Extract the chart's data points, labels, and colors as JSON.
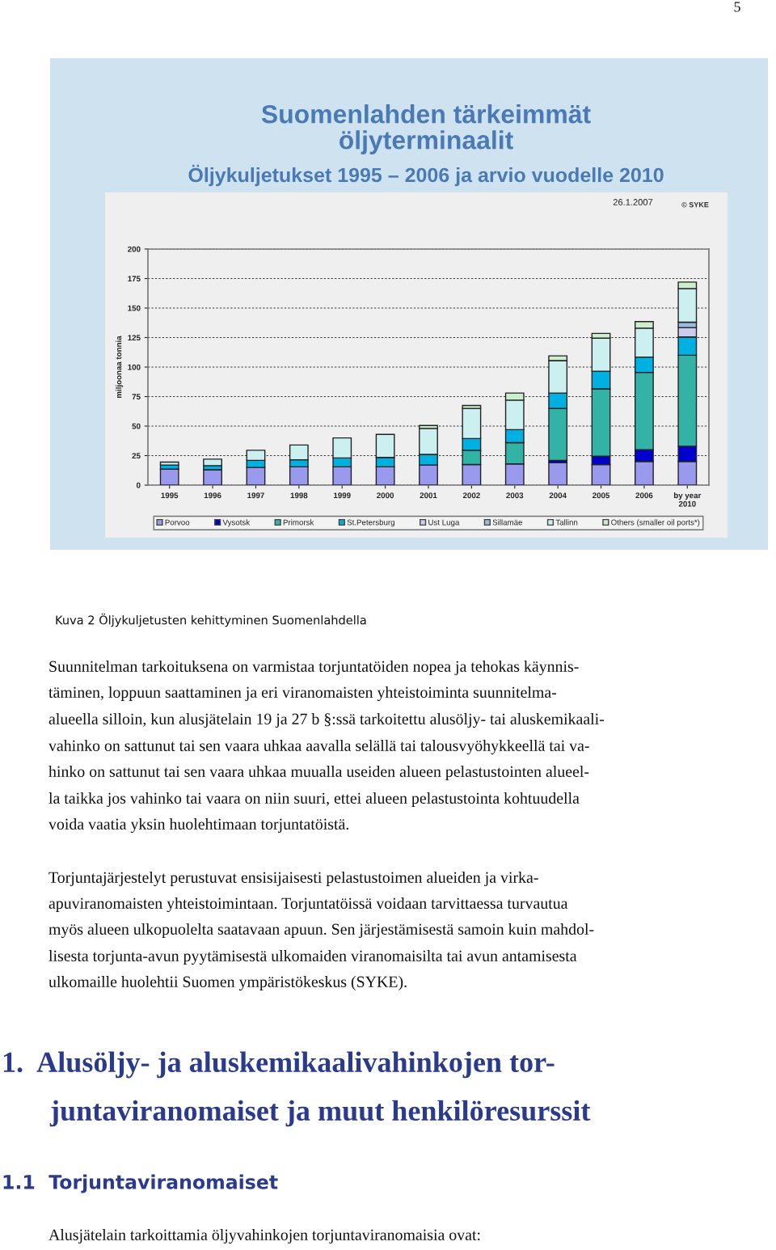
{
  "chart_data": {
    "type": "bar",
    "stacked": true,
    "title": "Suomenlahden tärkeimmät\nöljyterminaalit",
    "subtitle": "Öljykuljetukset 1995 – 2006 ja arvio vuodelle 2010",
    "ylabel": "miljoonaa tonnia",
    "categories": [
      "1995",
      "1996",
      "1997",
      "1998",
      "1999",
      "2000",
      "2001",
      "2002",
      "2003",
      "2004",
      "2005",
      "2006",
      "by year\n2010"
    ],
    "series": [
      {
        "name": "Porvoo",
        "color": "#9999ee",
        "values": [
          13.5,
          13,
          15,
          15.5,
          15.5,
          15.5,
          17,
          17.5,
          18,
          19,
          17.5,
          20,
          20
        ]
      },
      {
        "name": "Vysotsk",
        "color": "#0000cc",
        "values": [
          null,
          null,
          null,
          null,
          null,
          null,
          null,
          null,
          null,
          2,
          7,
          10,
          13
        ]
      },
      {
        "name": "Primorsk",
        "color": "#33b3a6",
        "values": [
          null,
          null,
          null,
          null,
          null,
          null,
          null,
          12,
          18,
          44,
          57,
          65.5,
          77
        ]
      },
      {
        "name": "St.Petersburg",
        "color": "#00b0e0",
        "values": [
          3.5,
          3.5,
          6,
          6,
          7.5,
          8,
          9,
          10,
          11,
          13,
          15,
          13,
          15.5
        ]
      },
      {
        "name": "Ust Luga",
        "color": "#ccccee",
        "values": [
          null,
          null,
          null,
          null,
          null,
          null,
          null,
          null,
          null,
          null,
          null,
          null,
          8
        ]
      },
      {
        "name": "Sillamäe",
        "color": "#99bbdd",
        "values": [
          null,
          null,
          null,
          null,
          null,
          null,
          null,
          null,
          null,
          null,
          null,
          null,
          4.5
        ]
      },
      {
        "name": "Tallinn",
        "color": "#ccf0f0",
        "values": [
          2.5,
          5.5,
          8.5,
          12.5,
          17,
          19.5,
          22,
          25.5,
          25,
          27.5,
          28,
          24.5,
          28.5
        ]
      },
      {
        "name": "Others (smaller oil ports*)",
        "color": "#cceecc",
        "values": [
          null,
          null,
          null,
          null,
          null,
          null,
          2.5,
          2.5,
          6,
          4,
          4,
          5.5,
          5.5
        ]
      }
    ],
    "ylim": [
      0,
      200
    ],
    "yticks": [
      0,
      25,
      50,
      75,
      100,
      125,
      150,
      175,
      200
    ],
    "grid": "y",
    "legend": "bottom",
    "annotations": [
      "26.1.2007",
      "© SYKE",
      "Kuva 2 Öljykuljetusten kehittyminen Suomenlahdella",
      "Suunnitelman tarkoituksena on varmistaa torjuntatöiden nopea ja tehokas käynnis-",
      "täminen, loppuun saattaminen ja eri viranomaisten yhteistoiminta suunnitelma-",
      "alueella silloin, kun alusjätelain 19 ja 27 b §:ssä tarkoitettu alusöljy- tai aluskemikaali-",
      "vahinko on sattunut tai sen vaara uhkaa aavalla selällä tai talousvyöhykkeellä tai va-",
      "hinko on sattunut tai sen vaara uhkaa muualla useiden alueen pelastustointen alueel-",
      "la taikka jos vahinko tai vaara on niin suuri, ettei alueen pelastustointa kohtuudella",
      "voida vaatia yksin huolehtimaan torjuntatöistä.",
      "Torjuntajärjestelyt perustuvat ensisijaisesti pelastustoimen alueiden ja virka-",
      "apuviranomaisten yhteistoimintaan. Torjuntatöissä voidaan tarvittaessa turvautua",
      "myös alueen ulkopuolelta saatavaan apuun. Sen järjestämisestä samoin kuin mahdol-",
      "lisesta torjunta-avun pyytämisestä ulkomaiden viranomaisilta tai avun antamisesta",
      "ulkomaille huolehtii Suomen ympäristökeskus (SYKE).",
      "1.  Alusöljy- ja aluskemikaalivahinkojen tor-",
      "juntaviranomaiset ja muut henkilöresurssit",
      "1.1  Torjuntaviranomaiset",
      "Alusjätelain tarkoittamia öljyvahinkojen torjuntaviranomaisia ovat:",
      "5"
    ]
  }
}
